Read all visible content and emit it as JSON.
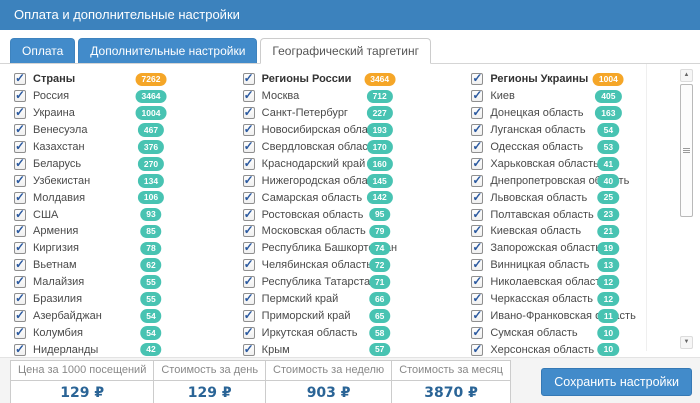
{
  "window": {
    "title": "Оплата и дополнительные настройки"
  },
  "tabs": [
    {
      "label": "Оплата",
      "active": false
    },
    {
      "label": "Дополнительные настройки",
      "active": false
    },
    {
      "label": "Географический таргетинг",
      "active": true
    }
  ],
  "colors": {
    "header_bg": "#3c82bd",
    "tab_blue": "#428bca",
    "badge_teal": "#48c3b2",
    "badge_orange": "#f5a628",
    "value_blue": "#2a6496"
  },
  "columns": [
    {
      "items": [
        {
          "label": "Страны",
          "count": "7262",
          "header": true,
          "checked": true
        },
        {
          "label": "Россия",
          "count": "3464",
          "header": false,
          "checked": true
        },
        {
          "label": "Украина",
          "count": "1004",
          "header": false,
          "checked": true
        },
        {
          "label": "Венесуэла",
          "count": "467",
          "header": false,
          "checked": true
        },
        {
          "label": "Казахстан",
          "count": "376",
          "header": false,
          "checked": true
        },
        {
          "label": "Беларусь",
          "count": "270",
          "header": false,
          "checked": true
        },
        {
          "label": "Узбекистан",
          "count": "134",
          "header": false,
          "checked": true
        },
        {
          "label": "Молдавия",
          "count": "106",
          "header": false,
          "checked": true
        },
        {
          "label": "США",
          "count": "93",
          "header": false,
          "checked": true
        },
        {
          "label": "Армения",
          "count": "85",
          "header": false,
          "checked": true
        },
        {
          "label": "Киргизия",
          "count": "78",
          "header": false,
          "checked": true
        },
        {
          "label": "Вьетнам",
          "count": "62",
          "header": false,
          "checked": true
        },
        {
          "label": "Малайзия",
          "count": "55",
          "header": false,
          "checked": true
        },
        {
          "label": "Бразилия",
          "count": "55",
          "header": false,
          "checked": true
        },
        {
          "label": "Азербайджан",
          "count": "54",
          "header": false,
          "checked": true
        },
        {
          "label": "Колумбия",
          "count": "54",
          "header": false,
          "checked": true
        },
        {
          "label": "Нидерланды",
          "count": "42",
          "header": false,
          "checked": true
        }
      ]
    },
    {
      "items": [
        {
          "label": "Регионы России",
          "count": "3464",
          "header": true,
          "checked": true
        },
        {
          "label": "Москва",
          "count": "712",
          "header": false,
          "checked": true
        },
        {
          "label": "Санкт-Петербург",
          "count": "227",
          "header": false,
          "checked": true
        },
        {
          "label": "Новосибирская область",
          "count": "193",
          "header": false,
          "checked": true
        },
        {
          "label": "Свердловская область",
          "count": "170",
          "header": false,
          "checked": true
        },
        {
          "label": "Краснодарский край",
          "count": "160",
          "header": false,
          "checked": true
        },
        {
          "label": "Нижегородская область",
          "count": "145",
          "header": false,
          "checked": true
        },
        {
          "label": "Самарская область",
          "count": "142",
          "header": false,
          "checked": true
        },
        {
          "label": "Ростовская область",
          "count": "95",
          "header": false,
          "checked": true
        },
        {
          "label": "Московская область",
          "count": "79",
          "header": false,
          "checked": true
        },
        {
          "label": "Республика Башкортостан",
          "count": "74",
          "header": false,
          "checked": true
        },
        {
          "label": "Челябинская область",
          "count": "72",
          "header": false,
          "checked": true
        },
        {
          "label": "Республика Татарстан",
          "count": "71",
          "header": false,
          "checked": true
        },
        {
          "label": "Пермский край",
          "count": "66",
          "header": false,
          "checked": true
        },
        {
          "label": "Приморский край",
          "count": "65",
          "header": false,
          "checked": true
        },
        {
          "label": "Иркутская область",
          "count": "58",
          "header": false,
          "checked": true
        },
        {
          "label": "Крым",
          "count": "57",
          "header": false,
          "checked": true
        }
      ]
    },
    {
      "items": [
        {
          "label": "Регионы Украины",
          "count": "1004",
          "header": true,
          "checked": true
        },
        {
          "label": "Киев",
          "count": "405",
          "header": false,
          "checked": true
        },
        {
          "label": "Донецкая область",
          "count": "163",
          "header": false,
          "checked": true
        },
        {
          "label": "Луганская область",
          "count": "54",
          "header": false,
          "checked": true
        },
        {
          "label": "Одесская область",
          "count": "53",
          "header": false,
          "checked": true
        },
        {
          "label": "Харьковская область",
          "count": "41",
          "header": false,
          "checked": true
        },
        {
          "label": "Днепропетровская область",
          "count": "40",
          "header": false,
          "checked": true
        },
        {
          "label": "Львовская область",
          "count": "25",
          "header": false,
          "checked": true
        },
        {
          "label": "Полтавская область",
          "count": "23",
          "header": false,
          "checked": true
        },
        {
          "label": "Киевская область",
          "count": "21",
          "header": false,
          "checked": true
        },
        {
          "label": "Запорожская область",
          "count": "19",
          "header": false,
          "checked": true
        },
        {
          "label": "Винницкая область",
          "count": "13",
          "header": false,
          "checked": true
        },
        {
          "label": "Николаевская область",
          "count": "12",
          "header": false,
          "checked": true
        },
        {
          "label": "Черкасская область",
          "count": "12",
          "header": false,
          "checked": true
        },
        {
          "label": "Ивано-Франковская область",
          "count": "11",
          "header": false,
          "checked": true
        },
        {
          "label": "Сумская область",
          "count": "10",
          "header": false,
          "checked": true
        },
        {
          "label": "Херсонская область",
          "count": "10",
          "header": false,
          "checked": true
        }
      ]
    }
  ],
  "footer": {
    "stats": [
      {
        "label": "Цена за 1000 посещений",
        "value": "129 ₽"
      },
      {
        "label": "Стоимость за день",
        "value": "129 ₽"
      },
      {
        "label": "Стоимость за неделю",
        "value": "903 ₽"
      },
      {
        "label": "Стоимость за месяц",
        "value": "3870 ₽"
      }
    ],
    "save_label": "Сохранить настройки"
  }
}
